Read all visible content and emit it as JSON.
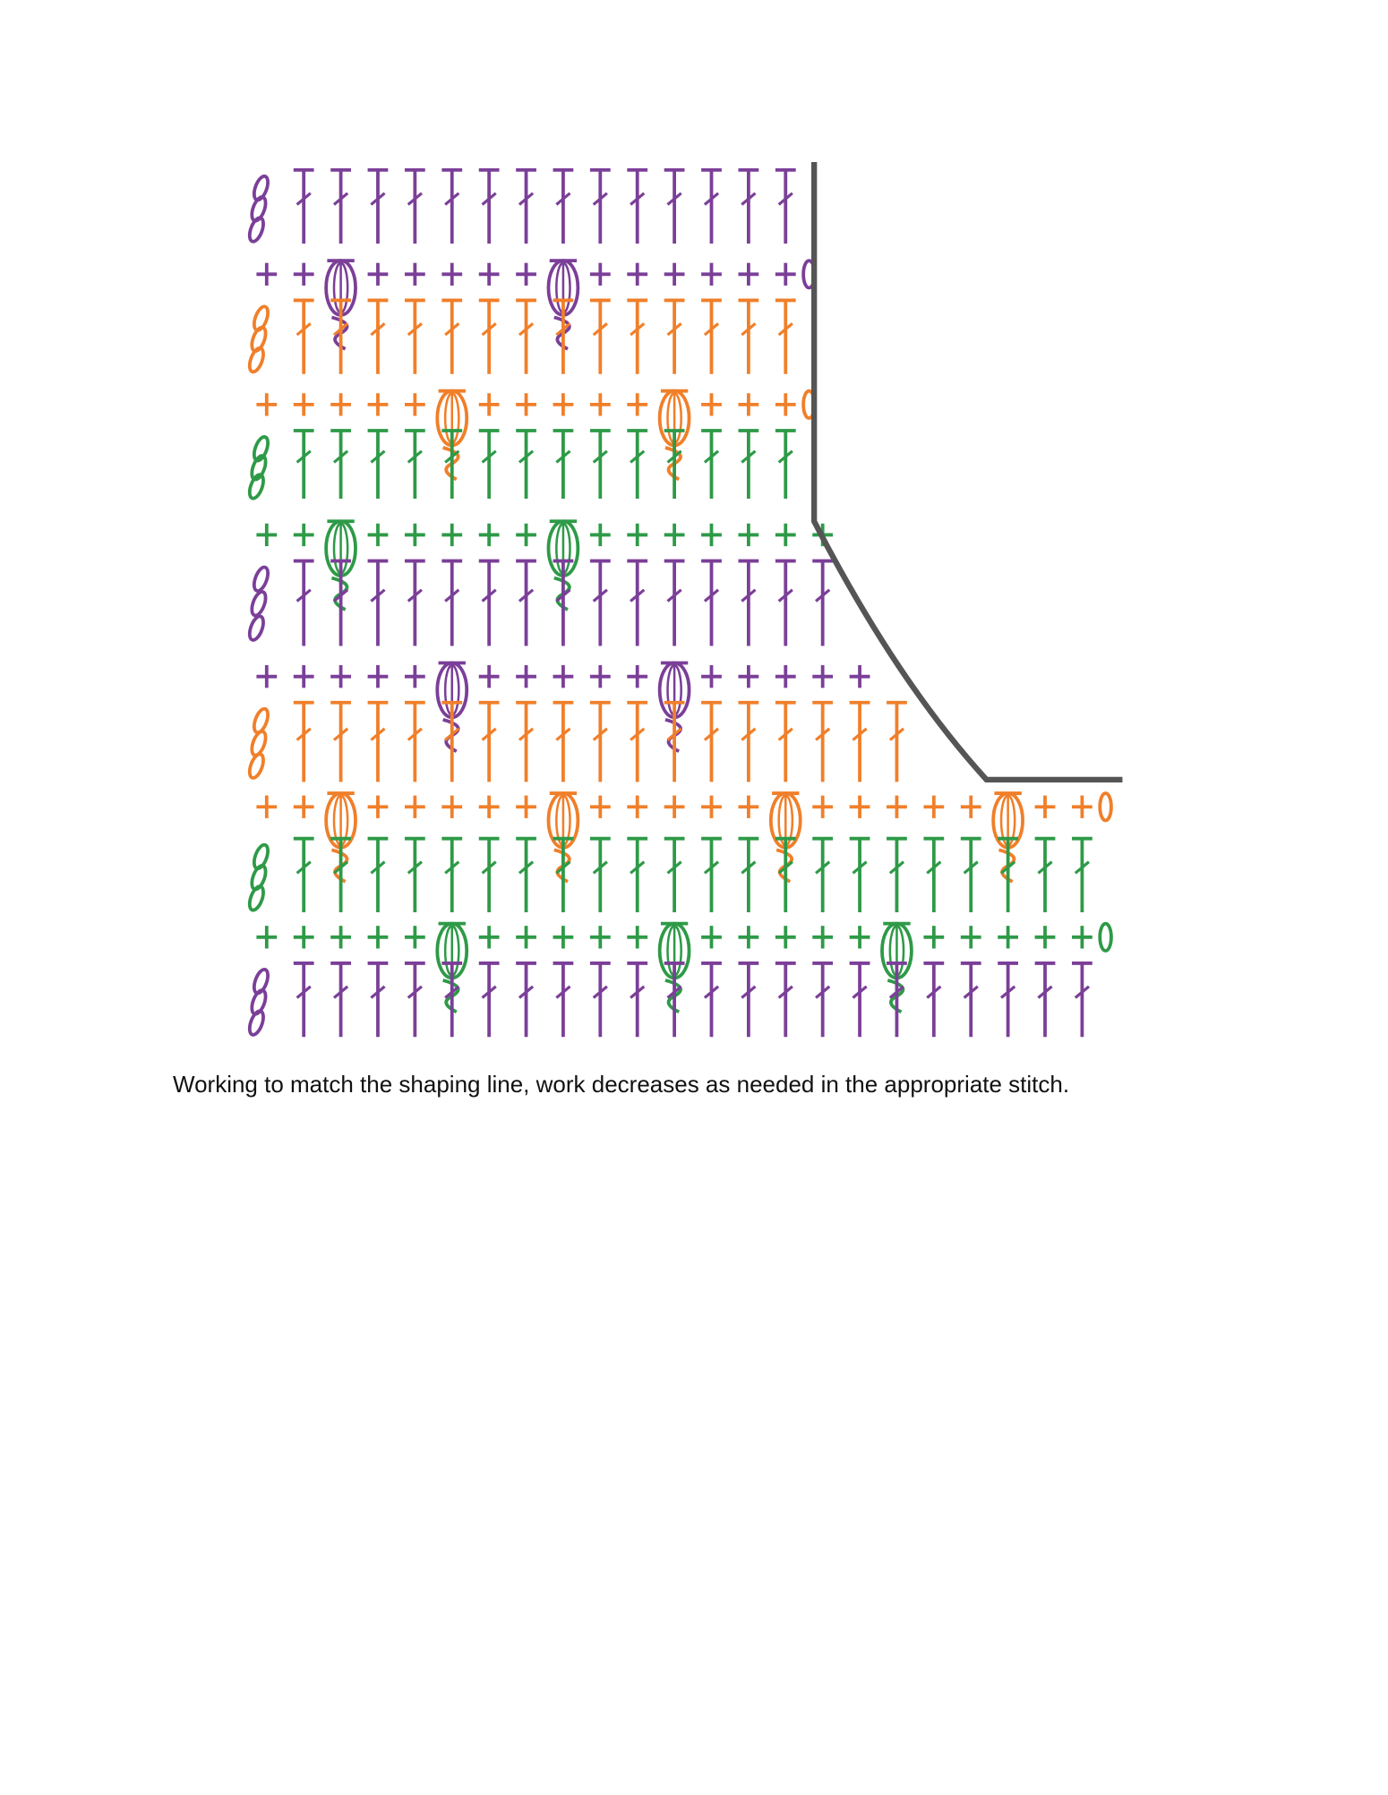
{
  "caption": "Working to match the shaping line, work decreases as needed in the appropriate stitch."
}
